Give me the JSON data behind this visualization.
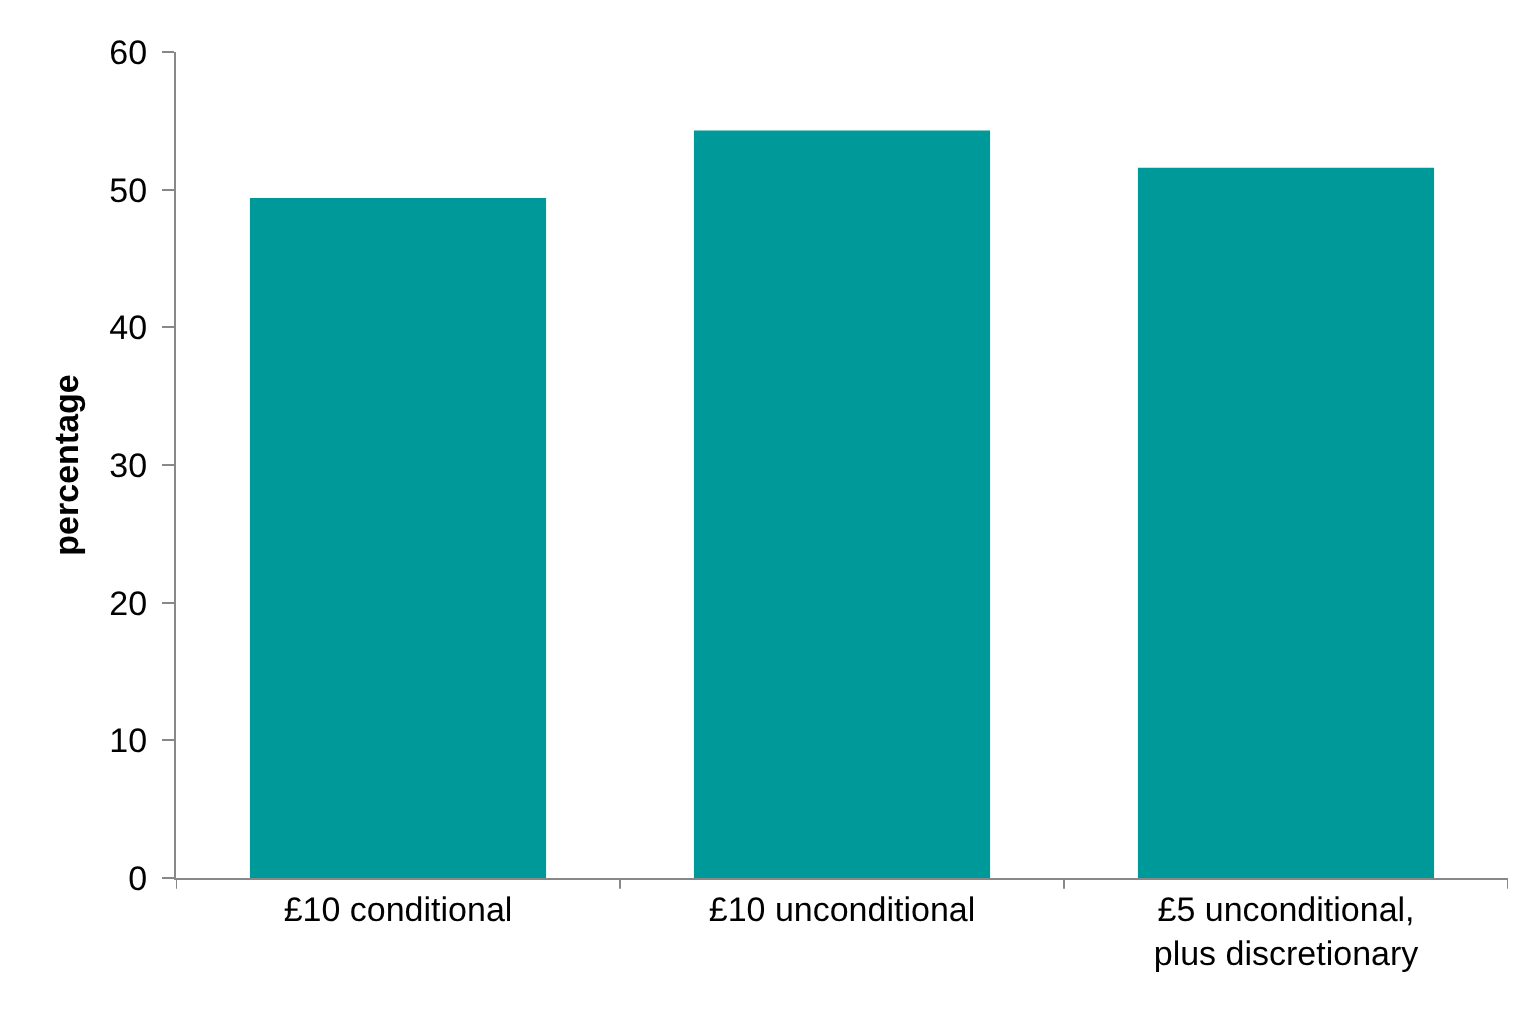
{
  "chart_data": {
    "type": "bar",
    "ylabel": "percentage",
    "categories": [
      "£10 conditional",
      "£10 unconditional",
      "£5 unconditional, plus discretionary"
    ],
    "values": [
      49.4,
      54.3,
      51.6
    ],
    "color": "#009999",
    "ylim": [
      0,
      60
    ],
    "yticks": [
      0,
      10,
      20,
      30,
      40,
      50,
      60
    ],
    "grid": false
  }
}
